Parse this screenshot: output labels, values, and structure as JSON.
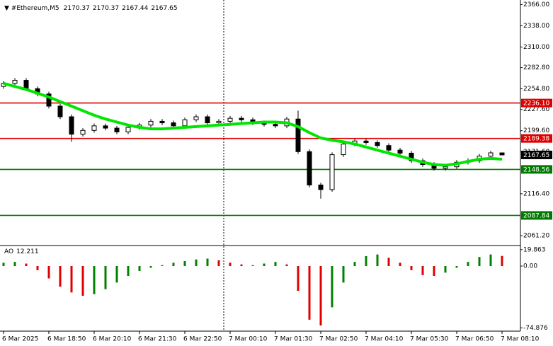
{
  "chart_data": [
    {
      "type": "candlestick",
      "title": "#Ethereum,M5",
      "header_values": [
        2170.37,
        2170.37,
        2167.44,
        2167.65
      ],
      "ylim": [
        2050,
        2372
      ],
      "yticks": [
        {
          "value": 2366,
          "label": "2366.00"
        },
        {
          "value": 2338,
          "label": "2338.00"
        },
        {
          "value": 2310,
          "label": "2310.00"
        },
        {
          "value": 2282.8,
          "label": "2282.80"
        },
        {
          "value": 2254.8,
          "label": "2254.80"
        },
        {
          "value": 2227.6,
          "label": "2227.60"
        },
        {
          "value": 2199.6,
          "label": "2199.60"
        },
        {
          "value": 2171.6,
          "label": "2171.60"
        },
        {
          "value": 2116.4,
          "label": "2116.40"
        },
        {
          "value": 2061.2,
          "label": "2061.20"
        }
      ],
      "xticks": [
        {
          "value": 0,
          "label": "6 Mar 2025"
        },
        {
          "value": 4,
          "label": "6 Mar 18:50"
        },
        {
          "value": 8,
          "label": "6 Mar 20:10"
        },
        {
          "value": 12,
          "label": "6 Mar 21:30"
        },
        {
          "value": 16,
          "label": "6 Mar 22:50"
        },
        {
          "value": 20,
          "label": "7 Mar 00:10"
        },
        {
          "value": 24,
          "label": "7 Mar 01:30"
        },
        {
          "value": 28,
          "label": "7 Mar 02:50"
        },
        {
          "value": 32,
          "label": "7 Mar 04:10"
        },
        {
          "value": 36,
          "label": "7 Mar 05:30"
        },
        {
          "value": 40,
          "label": "7 Mar 06:50"
        },
        {
          "value": 44,
          "label": "7 Mar 08:10"
        }
      ],
      "open": [
        2258,
        2262,
        2266,
        2255,
        2248,
        2232,
        2218,
        2195,
        2200,
        2206,
        2203,
        2198,
        2204,
        2207,
        2212,
        2210,
        2206,
        2214,
        2218,
        2210,
        2212,
        2216,
        2214,
        2210,
        2208,
        2206,
        2215,
        2172,
        2128,
        2122,
        2168,
        2182,
        2186,
        2184,
        2180,
        2174,
        2170,
        2160,
        2155,
        2150,
        2152,
        2158,
        2160,
        2166,
        2170.37
      ],
      "high": [
        2265,
        2269,
        2269,
        2258,
        2251,
        2235,
        2221,
        2203,
        2209,
        2209,
        2206,
        2207,
        2210,
        2215,
        2215,
        2213,
        2217,
        2221,
        2221,
        2215,
        2219,
        2219,
        2217,
        2213,
        2211,
        2218,
        2226,
        2175,
        2131,
        2171,
        2185,
        2189,
        2189,
        2187,
        2183,
        2177,
        2173,
        2163,
        2158,
        2155,
        2161,
        2163,
        2169,
        2173,
        2170.37
      ],
      "low": [
        2255,
        2259,
        2252,
        2245,
        2229,
        2215,
        2185,
        2192,
        2197,
        2200,
        2195,
        2195,
        2201,
        2204,
        2207,
        2203,
        2203,
        2211,
        2207,
        2207,
        2209,
        2211,
        2207,
        2205,
        2203,
        2203,
        2169,
        2125,
        2110,
        2119,
        2165,
        2179,
        2181,
        2177,
        2171,
        2167,
        2157,
        2152,
        2147,
        2147,
        2149,
        2155,
        2157,
        2163,
        2167.44
      ],
      "close": [
        2262,
        2266,
        2255,
        2248,
        2232,
        2218,
        2195,
        2200,
        2206,
        2203,
        2198,
        2204,
        2207,
        2212,
        2210,
        2206,
        2214,
        2218,
        2210,
        2212,
        2216,
        2214,
        2210,
        2208,
        2206,
        2215,
        2172,
        2128,
        2122,
        2168,
        2182,
        2186,
        2184,
        2180,
        2174,
        2170,
        2160,
        2155,
        2150,
        2152,
        2158,
        2160,
        2166,
        2170.37,
        2167.65
      ],
      "ma": {
        "color": "#00e600",
        "values": [
          2262,
          2258,
          2254,
          2249,
          2244,
          2238,
          2232,
          2226,
          2220,
          2215,
          2211,
          2207,
          2204,
          2202,
          2202,
          2203,
          2204,
          2205,
          2206,
          2207,
          2208,
          2209,
          2210,
          2211,
          2211,
          2210,
          2205,
          2197,
          2190,
          2187,
          2185,
          2182,
          2178,
          2174,
          2170,
          2166,
          2162,
          2158,
          2155,
          2154,
          2156,
          2159,
          2162,
          2163,
          2162
        ]
      },
      "levels": [
        {
          "value": 2236.1,
          "label": "2236.10",
          "color": "#e00000"
        },
        {
          "value": 2189.38,
          "label": "2189.38",
          "color": "#e00000"
        },
        {
          "value": 2148.56,
          "label": "2148.56",
          "color": "#007a00"
        },
        {
          "value": 2087.84,
          "label": "2087.84",
          "color": "#007a00"
        }
      ],
      "last_price": 2167.65
    },
    {
      "type": "histogram",
      "title": "AO",
      "current_value": 12.211,
      "ylim": [
        -78,
        24
      ],
      "yticks": [
        19.863,
        {
          "value": 0,
          "label": "0.00"
        },
        -74.876
      ],
      "up_color": "#008000",
      "down_color": "#e00000",
      "values": [
        4,
        5,
        3,
        -5,
        -15,
        -25,
        -32,
        -36,
        -34,
        -28,
        -20,
        -12,
        -6,
        -2,
        1,
        4,
        6,
        8,
        9,
        7,
        4,
        2,
        1,
        3,
        5,
        2,
        -30,
        -65,
        -72,
        -50,
        -20,
        5,
        12,
        14,
        10,
        4,
        -5,
        -11,
        -12,
        -8,
        -2,
        5,
        11,
        14,
        12.211
      ]
    }
  ]
}
